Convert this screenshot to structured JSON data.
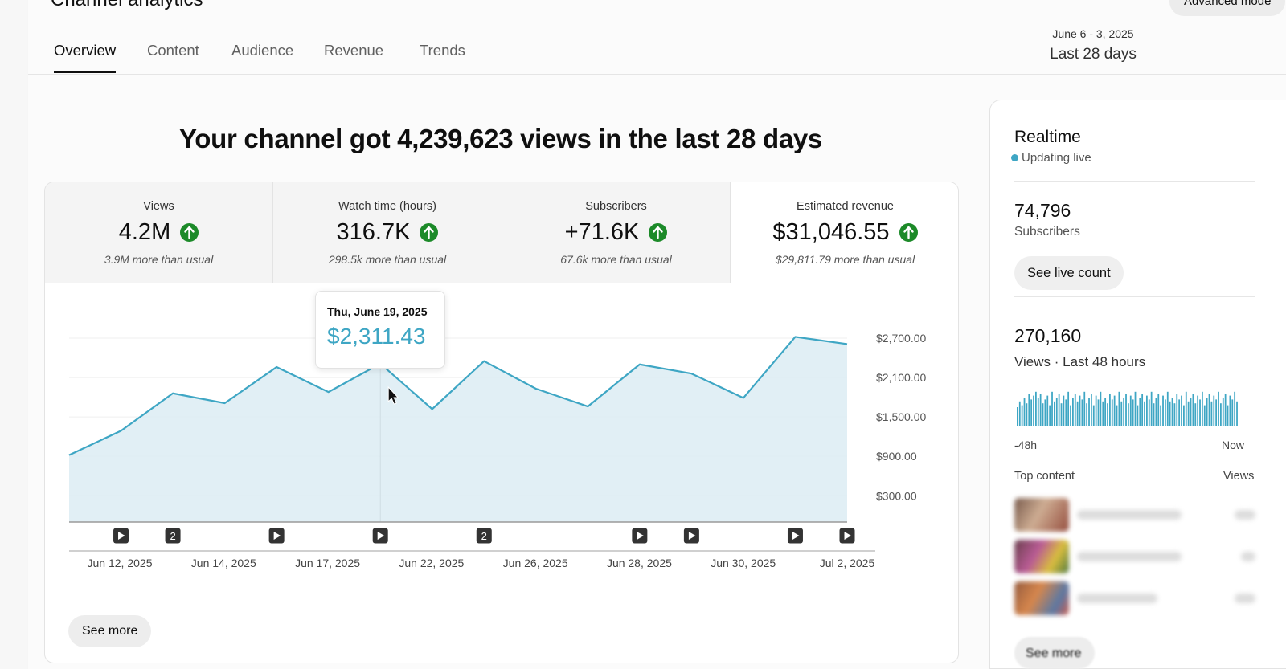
{
  "page": {
    "title": "Channel analytics",
    "advanced_mode": "Advanced mode"
  },
  "tabs": [
    {
      "label": "Overview",
      "active": true
    },
    {
      "label": "Content",
      "active": false
    },
    {
      "label": "Audience",
      "active": false
    },
    {
      "label": "Revenue",
      "active": false
    },
    {
      "label": "Trends",
      "active": false
    }
  ],
  "date_range": {
    "dates": "June 6 - 3, 2025",
    "label": "Last 28 days"
  },
  "headline": "Your channel got 4,239,623 views in the last 28 days",
  "metrics": [
    {
      "label": "Views",
      "value": "4.2M",
      "sub": "3.9M more than usual",
      "icon": "arrow-up-icon",
      "selected": false
    },
    {
      "label": "Watch time (hours)",
      "value": "316.7K",
      "sub": "298.5k more than usual",
      "icon": "arrow-up-icon",
      "selected": false
    },
    {
      "label": "Subscribers",
      "value": "+71.6K",
      "sub": "67.6k more than usual",
      "icon": "arrow-up-icon",
      "selected": false
    },
    {
      "label": "Estimated revenue",
      "value": "$31,046.55",
      "sub": "$29,811.79 more than usual",
      "icon": "arrow-up-icon",
      "selected": true
    }
  ],
  "tooltip": {
    "date": "Thu, June 19, 2025",
    "value": "$2,311.43"
  },
  "chart_data": {
    "type": "area",
    "series": [
      {
        "values": [
          920,
          1290,
          1860,
          1710,
          2260,
          1880,
          2311.43,
          1620,
          2350,
          1930,
          1660,
          2300,
          2160,
          1790,
          2720,
          2610
        ]
      }
    ],
    "y_ticks": [
      "$2,700.00",
      "$2,100.00",
      "$1,500.00",
      "$900.00",
      "$300.00"
    ],
    "y_tick_values": [
      2700,
      2100,
      1500,
      900,
      300
    ],
    "ylim": [
      -100,
      3300
    ],
    "x_tick_labels": [
      "Jun 12, 2025",
      "Jun 14, 2025",
      "Jun 17, 2025",
      "Jun 22, 2025",
      "Jun 26, 2025",
      "Jun 28, 2025",
      "Jun 30, 2025",
      "Jul 2, 2025"
    ],
    "hover_index": 6,
    "markers": [
      {
        "kind": "play",
        "text": "",
        "index": 1
      },
      {
        "kind": "count",
        "text": "2",
        "index": 2
      },
      {
        "kind": "play",
        "text": "",
        "index": 4
      },
      {
        "kind": "play",
        "text": "",
        "index": 6
      },
      {
        "kind": "count",
        "text": "2",
        "index": 8
      },
      {
        "kind": "play",
        "text": "",
        "index": 11
      },
      {
        "kind": "play",
        "text": "",
        "index": 12
      },
      {
        "kind": "play",
        "text": "",
        "index": 14
      },
      {
        "kind": "play",
        "text": "",
        "index": 15
      }
    ],
    "color": "#3ea6c4",
    "fill_color": "#dcecf3",
    "grid": true
  },
  "see_more": "See more",
  "realtime": {
    "title": "Realtime",
    "live": "Updating live",
    "subscribers_value": "74,796",
    "subscribers_label": "Subscribers",
    "live_count_button": "See live count",
    "views_value": "270,160",
    "views_label": "Views · Last 48 hours",
    "axis_start": "-48h",
    "axis_end": "Now",
    "top_content_label": "Top content",
    "views_col_label": "Views",
    "spark_values": [
      0.5,
      0.65,
      0.55,
      0.75,
      0.6,
      0.85,
      0.7,
      0.8,
      0.9,
      0.75,
      0.85,
      0.6,
      0.7,
      0.8,
      0.55,
      0.9,
      0.65,
      0.75,
      0.85,
      0.6,
      0.8,
      0.7,
      0.9,
      0.55,
      0.75,
      0.85,
      0.65,
      0.8,
      0.7,
      0.9,
      0.6,
      0.75,
      0.85,
      0.55,
      0.8,
      0.7,
      0.9,
      0.65,
      0.75,
      0.6,
      0.85,
      0.7,
      0.8,
      0.55,
      0.9,
      0.65,
      0.75,
      0.85,
      0.6,
      0.8,
      0.7,
      0.9,
      0.55,
      0.75,
      0.85,
      0.65,
      0.8,
      0.7,
      0.9,
      0.6,
      0.75,
      0.85,
      0.55,
      0.8,
      0.7,
      0.9,
      0.65,
      0.75,
      0.6,
      0.85,
      0.7,
      0.8,
      0.55,
      0.9,
      0.65,
      0.75,
      0.85,
      0.6,
      0.8,
      0.7,
      0.9,
      0.55,
      0.75,
      0.85,
      0.65,
      0.8,
      0.7,
      0.9,
      0.6,
      0.75,
      0.85,
      0.55,
      0.8,
      0.7,
      0.9,
      0.65
    ],
    "see_more": "See more",
    "accent": "#3ea6c4"
  }
}
